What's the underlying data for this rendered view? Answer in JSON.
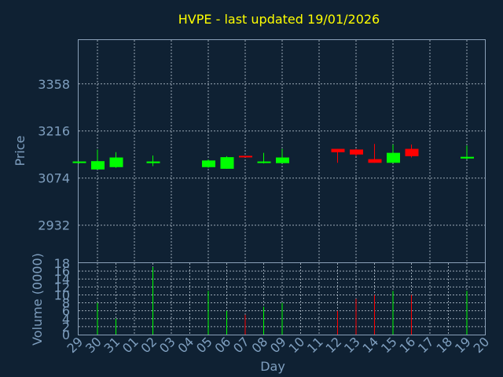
{
  "chart_data": {
    "type": "candlestick",
    "title": "HVPE - last updated 19/01/2026",
    "xlabel": "Day",
    "price_ylabel": "Price",
    "volume_ylabel": "Volume (0000)",
    "price_ticks": [
      2932,
      3074,
      3216,
      3358
    ],
    "price_ylim": [
      2820,
      3490
    ],
    "volume_ticks": [
      0,
      2,
      4,
      6,
      8,
      10,
      12,
      14,
      16,
      18
    ],
    "volume_ylim": [
      0,
      18
    ],
    "days": [
      "29",
      "30",
      "31",
      "01",
      "02",
      "03",
      "04",
      "05",
      "06",
      "07",
      "08",
      "09",
      "10",
      "11",
      "12",
      "13",
      "14",
      "15",
      "16",
      "17",
      "18",
      "19",
      "20"
    ],
    "up_color": "#00ff00",
    "down_color": "#ff0000",
    "candles": [
      {
        "day": "29",
        "open": 3120,
        "close": 3124,
        "high": 3124,
        "low": 3118,
        "volume": 0
      },
      {
        "day": "30",
        "open": 3100,
        "close": 3125,
        "high": 3160,
        "low": 3100,
        "volume": 8
      },
      {
        "day": "31",
        "open": 3107,
        "close": 3136,
        "high": 3152,
        "low": 3105,
        "volume": 4
      },
      {
        "day": "02",
        "open": 3119,
        "close": 3124,
        "high": 3142,
        "low": 3110,
        "volume": 17
      },
      {
        "day": "05",
        "open": 3107,
        "close": 3127,
        "high": 3130,
        "low": 3105,
        "volume": 11
      },
      {
        "day": "06",
        "open": 3102,
        "close": 3137,
        "high": 3140,
        "low": 3102,
        "volume": 6
      },
      {
        "day": "07",
        "open": 3141,
        "close": 3137,
        "high": 3141,
        "low": 3137,
        "volume": 5
      },
      {
        "day": "08",
        "open": 3121,
        "close": 3124,
        "high": 3150,
        "low": 3118,
        "volume": 7
      },
      {
        "day": "09",
        "open": 3119,
        "close": 3136,
        "high": 3162,
        "low": 3119,
        "volume": 8
      },
      {
        "day": "12",
        "open": 3162,
        "close": 3152,
        "high": 3162,
        "low": 3120,
        "volume": 6
      },
      {
        "day": "13",
        "open": 3160,
        "close": 3145,
        "high": 3162,
        "low": 3140,
        "volume": 9
      },
      {
        "day": "14",
        "open": 3131,
        "close": 3120,
        "high": 3177,
        "low": 3120,
        "volume": 10
      },
      {
        "day": "15",
        "open": 3120,
        "close": 3150,
        "high": 3175,
        "low": 3120,
        "volume": 11
      },
      {
        "day": "16",
        "open": 3162,
        "close": 3140,
        "high": 3175,
        "low": 3136,
        "volume": 10
      },
      {
        "day": "19",
        "open": 3133,
        "close": 3138,
        "high": 3172,
        "low": 3130,
        "volume": 11
      }
    ]
  }
}
